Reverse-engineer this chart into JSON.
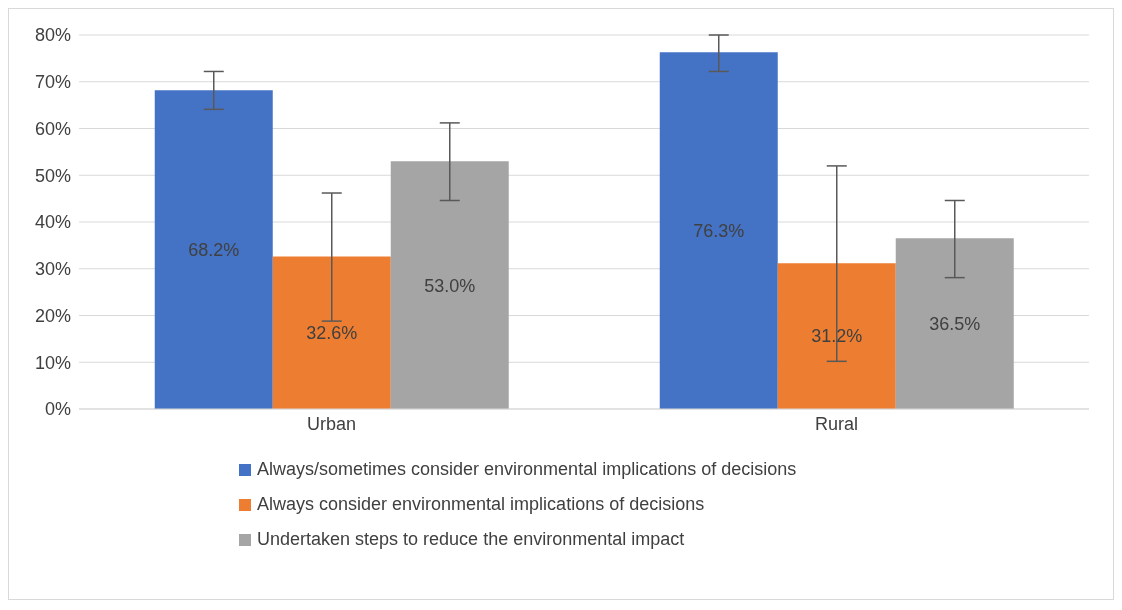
{
  "chart_data": {
    "type": "bar",
    "categories": [
      "Urban",
      "Rural"
    ],
    "series": [
      {
        "name": "Always/sometimes consider environmental implications of decisions",
        "color": "#4472c4",
        "values": [
          68.2,
          76.3
        ],
        "errors": [
          [
            64.1,
            72.2
          ],
          [
            72.2,
            80.0
          ]
        ],
        "value_labels": [
          "68.2%",
          "76.3%"
        ]
      },
      {
        "name": "Always consider environmental implications of decisions",
        "color": "#ed7d31",
        "values": [
          32.6,
          31.2
        ],
        "errors": [
          [
            18.8,
            46.2
          ],
          [
            10.2,
            52.0
          ]
        ],
        "value_labels": [
          "32.6%",
          "31.2%"
        ]
      },
      {
        "name": "Undertaken steps to reduce the environmental impact",
        "color": "#a5a5a5",
        "values": [
          53.0,
          36.5
        ],
        "errors": [
          [
            44.6,
            61.2
          ],
          [
            28.1,
            44.6
          ]
        ],
        "value_labels": [
          "53.0%",
          "36.5%"
        ]
      }
    ],
    "ylim": [
      0,
      80
    ],
    "yticks": [
      {
        "value": 0,
        "label": "0%"
      },
      {
        "value": 10,
        "label": "10%"
      },
      {
        "value": 20,
        "label": "20%"
      },
      {
        "value": 30,
        "label": "30%"
      },
      {
        "value": 40,
        "label": "40%"
      },
      {
        "value": 50,
        "label": "50%"
      },
      {
        "value": 60,
        "label": "60%"
      },
      {
        "value": 70,
        "label": "70%"
      },
      {
        "value": 80,
        "label": "80%"
      }
    ],
    "grid": "y",
    "legend": "bottom"
  }
}
